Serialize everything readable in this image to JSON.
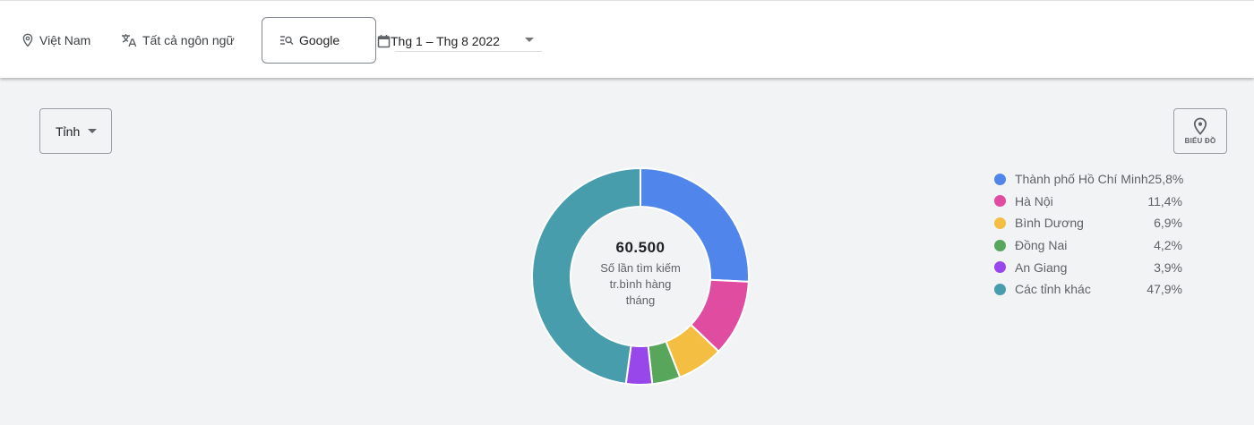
{
  "topbar": {
    "location": "Việt Nam",
    "language": "Tất cả ngôn ngữ",
    "source": "Google",
    "date_range": "Thg 1 – Thg 8 2022"
  },
  "controls": {
    "region_select": "Tỉnh",
    "map_button_label": "BIỂU ĐỒ"
  },
  "center": {
    "value": "60.500",
    "label_line1": "Số lần tìm kiếm",
    "label_line2": "tr.bình hàng",
    "label_line3": "tháng"
  },
  "legend": [
    {
      "name": "Thành phố Hồ Chí Minh",
      "value": "25,8%",
      "color": "#5086ec"
    },
    {
      "name": "Hà Nội",
      "value": "11,4%",
      "color": "#e04c9f"
    },
    {
      "name": "Bình Dương",
      "value": "6,9%",
      "color": "#f3be42"
    },
    {
      "name": "Đồng Nai",
      "value": "4,2%",
      "color": "#57a65c"
    },
    {
      "name": "An Giang",
      "value": "3,9%",
      "color": "#9747ea"
    },
    {
      "name": "Các tỉnh khác",
      "value": "47,9%",
      "color": "#489dad"
    }
  ],
  "chart_data": {
    "type": "pie",
    "subtype": "donut",
    "title": "",
    "center_value": "60.500",
    "center_label": "Số lần tìm kiếm tr.bình hàng tháng",
    "categories": [
      "Thành phố Hồ Chí Minh",
      "Hà Nội",
      "Bình Dương",
      "Đồng Nai",
      "An Giang",
      "Các tỉnh khác"
    ],
    "values": [
      25.8,
      11.4,
      6.9,
      4.2,
      3.9,
      47.9
    ],
    "colors": [
      "#5086ec",
      "#e04c9f",
      "#f3be42",
      "#57a65c",
      "#9747ea",
      "#489dad"
    ],
    "unit": "%",
    "start_angle": "12 o'clock, clockwise",
    "legend_position": "right"
  }
}
